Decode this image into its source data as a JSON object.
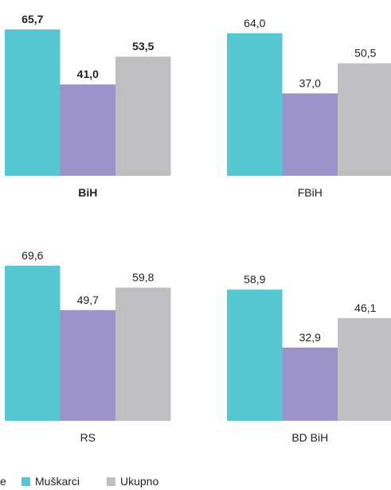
{
  "chart_data": [
    {
      "type": "bar",
      "title": "",
      "category": "BiH",
      "bold": true,
      "series": [
        {
          "name": "Žene",
          "value": 41.0,
          "label": "41,0"
        },
        {
          "name": "Muškarci",
          "value": 65.7,
          "label": "65,7"
        },
        {
          "name": "Ukupno",
          "value": 53.5,
          "label": "53,5"
        }
      ]
    },
    {
      "type": "bar",
      "title": "",
      "category": "FBiH",
      "bold": false,
      "series": [
        {
          "name": "Žene",
          "value": 37.0,
          "label": "37,0"
        },
        {
          "name": "Muškarci",
          "value": 64.0,
          "label": "64,0"
        },
        {
          "name": "Ukupno",
          "value": 50.5,
          "label": "50,5"
        }
      ]
    },
    {
      "type": "bar",
      "title": "",
      "category": "RS",
      "bold": false,
      "series": [
        {
          "name": "Žene",
          "value": 49.7,
          "label": "49,7"
        },
        {
          "name": "Muškarci",
          "value": 69.6,
          "label": "69,6"
        },
        {
          "name": "Ukupno",
          "value": 59.8,
          "label": "59,8"
        }
      ]
    },
    {
      "type": "bar",
      "title": "",
      "category": "BD BiH",
      "bold": false,
      "series": [
        {
          "name": "Žene",
          "value": 32.9,
          "label": "32,9"
        },
        {
          "name": "Muškarci",
          "value": 58.9,
          "label": "58,9"
        },
        {
          "name": "Ukupno",
          "value": 46.1,
          "label": "46,1"
        }
      ]
    }
  ],
  "series_order": [
    "Muškarci",
    "Žene",
    "Ukupno"
  ],
  "colors": {
    "Muškarci": "#56c6d0",
    "Žene": "#9b93c9",
    "Ukupno": "#bfbfc1",
    "text": "#231f20"
  },
  "legend": {
    "items": [
      {
        "label": "e",
        "color": "#9b93c9",
        "swatch": false
      },
      {
        "label": "Muškarci",
        "color": "#56c6d0",
        "swatch": true
      },
      {
        "label": "Ukupno",
        "color": "#bfbfc1",
        "swatch": true
      }
    ]
  }
}
